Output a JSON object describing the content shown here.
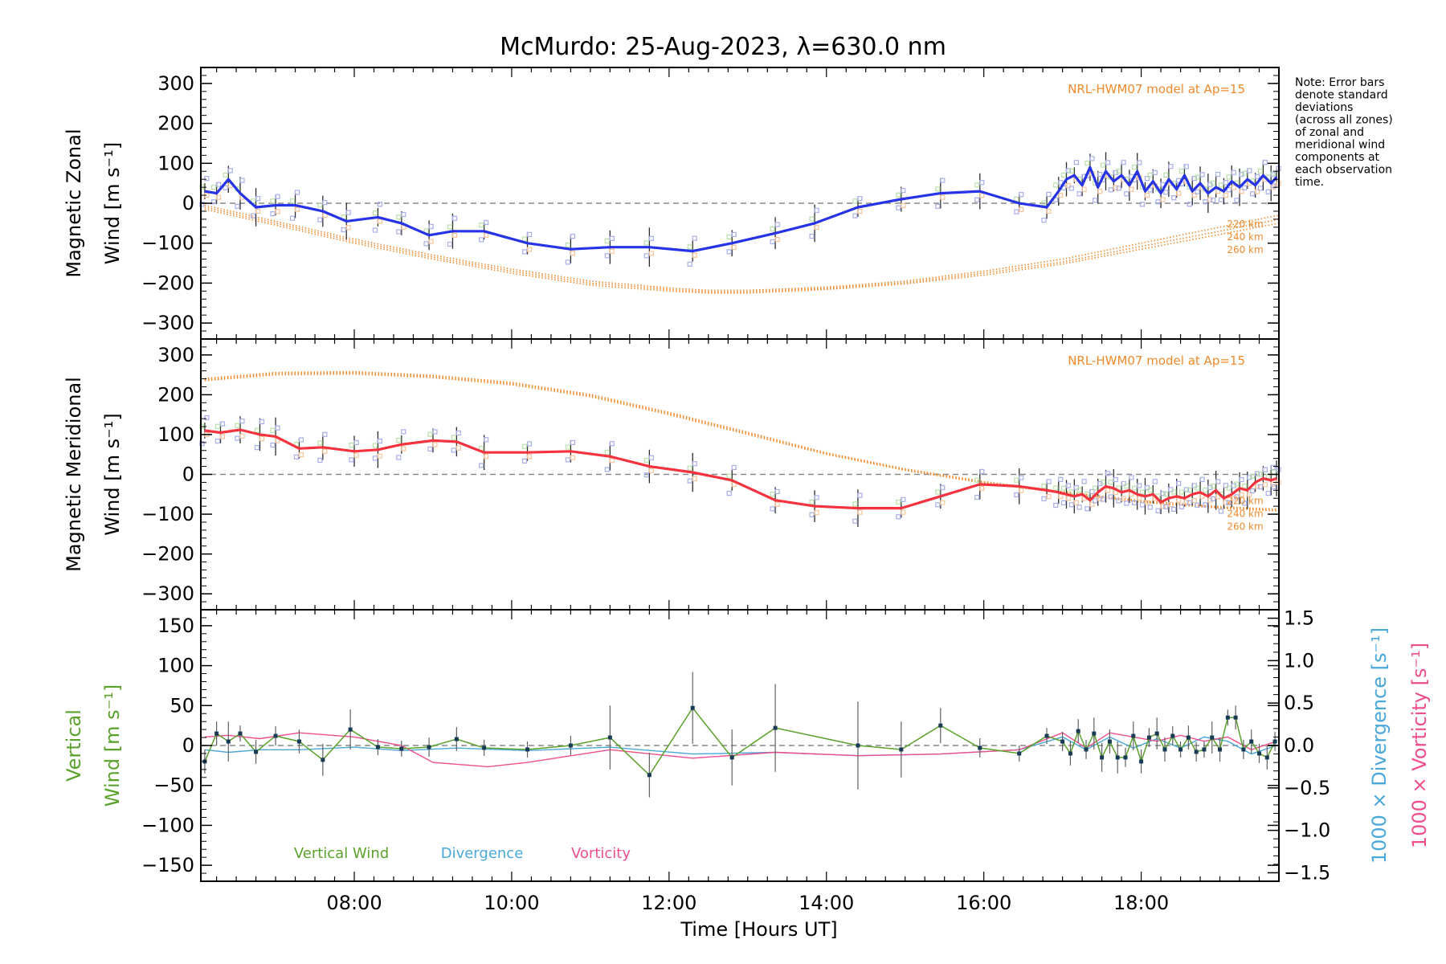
{
  "title": "McMurdo: 25-Aug-2023, λ=630.0 nm",
  "note": [
    "Note: Error bars",
    "denote standard",
    "deviations",
    "(across all zones)",
    "of zonal and",
    "meridional wind",
    "components at",
    "each observation",
    "time."
  ],
  "xlabel": "Time [Hours UT]",
  "colors": {
    "zonal": "#2633e6",
    "meridional": "#f5333f",
    "model": "#f08a2c",
    "vertical": "#5aa22c",
    "divergence": "#4aa7d9",
    "vorticity": "#ef4e8c",
    "errorbar": "#606060",
    "point": "#173a55"
  },
  "chart_data": [
    {
      "type": "line",
      "name": "zonal",
      "ylabel_line1": "Magnetic Zonal",
      "ylabel_line2": "Wind [m s⁻¹]",
      "model_label": "NRL-HWM07 model at Ap=15",
      "altitude_labels": [
        "220 km",
        "240 km",
        "260 km"
      ],
      "xlim": [
        6.05,
        19.75
      ],
      "ylim": [
        -340,
        340
      ],
      "yticks": [
        -300,
        -200,
        -100,
        0,
        100,
        200,
        300
      ],
      "ytick_labels": [
        "−300",
        "−200",
        "−100",
        "0",
        "100",
        "200",
        "300"
      ],
      "x": [
        6.1,
        6.25,
        6.4,
        6.55,
        6.75,
        7.0,
        7.25,
        7.6,
        7.9,
        8.3,
        8.6,
        8.95,
        9.25,
        9.65,
        10.2,
        10.75,
        11.25,
        11.75,
        12.3,
        12.8,
        13.35,
        13.85,
        14.4,
        14.95,
        15.45,
        15.95,
        16.45,
        16.8,
        16.95,
        17.05,
        17.15,
        17.25,
        17.35,
        17.45,
        17.55,
        17.65,
        17.75,
        17.85,
        17.95,
        18.05,
        18.15,
        18.25,
        18.35,
        18.45,
        18.55,
        18.65,
        18.75,
        18.85,
        18.95,
        19.05,
        19.15,
        19.25,
        19.35,
        19.45,
        19.55,
        19.65,
        19.72
      ],
      "values": [
        30,
        25,
        60,
        25,
        -10,
        -5,
        -5,
        -20,
        -45,
        -35,
        -50,
        -80,
        -70,
        -70,
        -100,
        -115,
        -110,
        -110,
        -120,
        -100,
        -75,
        -50,
        -10,
        10,
        25,
        30,
        0,
        -10,
        30,
        60,
        70,
        45,
        90,
        40,
        80,
        55,
        70,
        45,
        80,
        30,
        55,
        25,
        60,
        35,
        70,
        30,
        50,
        25,
        40,
        30,
        55,
        40,
        60,
        45,
        70,
        50,
        65
      ],
      "model": {
        "x": [
          6.1,
          7,
          8,
          9,
          10,
          11,
          12,
          12.5,
          13,
          14,
          15,
          16,
          17,
          18,
          19,
          19.75
        ],
        "220 km": [
          -5,
          -45,
          -90,
          -130,
          -165,
          -195,
          -212,
          -218,
          -218,
          -210,
          -195,
          -170,
          -140,
          -100,
          -60,
          -30
        ],
        "240 km": [
          -10,
          -50,
          -95,
          -135,
          -170,
          -200,
          -216,
          -222,
          -222,
          -213,
          -199,
          -175,
          -147,
          -108,
          -70,
          -40
        ],
        "260 km": [
          -15,
          -55,
          -100,
          -140,
          -175,
          -205,
          -220,
          -225,
          -225,
          -216,
          -202,
          -180,
          -152,
          -115,
          -78,
          -50
        ]
      }
    },
    {
      "type": "line",
      "name": "meridional",
      "ylabel_line1": "Magnetic Meridional",
      "ylabel_line2": "Wind [m s⁻¹]",
      "model_label": "NRL-HWM07 model at Ap=15",
      "altitude_labels": [
        "220 km",
        "240 km",
        "260 km"
      ],
      "xlim": [
        6.05,
        19.75
      ],
      "ylim": [
        -340,
        340
      ],
      "yticks": [
        -300,
        -200,
        -100,
        0,
        100,
        200,
        300
      ],
      "ytick_labels": [
        "−300",
        "−200",
        "−100",
        "0",
        "100",
        "200",
        "300"
      ],
      "x": [
        6.1,
        6.3,
        6.55,
        6.8,
        7.0,
        7.3,
        7.6,
        8.0,
        8.3,
        8.6,
        9.0,
        9.3,
        9.65,
        10.2,
        10.75,
        11.25,
        11.75,
        12.3,
        12.8,
        13.35,
        13.85,
        14.4,
        14.95,
        15.45,
        15.95,
        16.45,
        16.8,
        16.95,
        17.05,
        17.15,
        17.25,
        17.35,
        17.45,
        17.55,
        17.65,
        17.75,
        17.85,
        17.95,
        18.05,
        18.15,
        18.25,
        18.35,
        18.45,
        18.55,
        18.65,
        18.75,
        18.85,
        18.95,
        19.05,
        19.15,
        19.25,
        19.35,
        19.45,
        19.55,
        19.65,
        19.72
      ],
      "values": [
        110,
        105,
        112,
        100,
        95,
        65,
        68,
        58,
        62,
        75,
        85,
        82,
        55,
        55,
        58,
        45,
        20,
        5,
        -15,
        -65,
        -80,
        -85,
        -85,
        -55,
        -25,
        -30,
        -40,
        -45,
        -50,
        -55,
        -50,
        -65,
        -45,
        -30,
        -35,
        -45,
        -40,
        -50,
        -55,
        -50,
        -70,
        -60,
        -55,
        -60,
        -50,
        -45,
        -55,
        -40,
        -60,
        -50,
        -35,
        -40,
        -20,
        -10,
        -15,
        -10
      ],
      "model": {
        "x": [
          6.1,
          7,
          8,
          9,
          10,
          11,
          12,
          13,
          14,
          15,
          16,
          17,
          18,
          19,
          19.75
        ],
        "220 km": [
          235,
          250,
          252,
          243,
          225,
          195,
          150,
          100,
          50,
          10,
          -22,
          -47,
          -70,
          -85,
          -92
        ],
        "240 km": [
          238,
          253,
          255,
          246,
          228,
          198,
          153,
          103,
          52,
          12,
          -20,
          -45,
          -68,
          -83,
          -90
        ],
        "260 km": [
          241,
          256,
          258,
          249,
          231,
          201,
          156,
          106,
          54,
          14,
          -18,
          -43,
          -66,
          -81,
          -88
        ]
      }
    },
    {
      "type": "line",
      "name": "vertical",
      "ylabel_line1": "Vertical",
      "ylabel_line2": "Wind [m s⁻¹]",
      "right_label_divergence": "1000 × Divergence [s⁻¹]",
      "right_label_vorticity": "1000 × Vorticity [s⁻¹]",
      "legend": [
        "Vertical Wind",
        "Divergence",
        "Vorticity"
      ],
      "xlim": [
        6.05,
        19.75
      ],
      "ylim": [
        -170,
        170
      ],
      "yticks": [
        -150,
        -100,
        -50,
        0,
        50,
        100,
        150
      ],
      "ytick_labels": [
        "−150",
        "−100",
        "−50",
        "0",
        "50",
        "100",
        "150"
      ],
      "y2lim": [
        -1.6,
        1.6
      ],
      "y2ticks": [
        -1.5,
        -1.0,
        -0.5,
        0.0,
        0.5,
        1.0,
        1.5
      ],
      "y2tick_labels": [
        "−1.5",
        "−1.0",
        "−0.5",
        "0.0",
        "0.5",
        "1.0",
        "1.5"
      ],
      "xticks": [
        8,
        10,
        12,
        14,
        16,
        18
      ],
      "xtick_labels": [
        "08:00",
        "10:00",
        "12:00",
        "14:00",
        "16:00",
        "18:00"
      ],
      "x": [
        6.1,
        6.25,
        6.4,
        6.55,
        6.75,
        7.0,
        7.3,
        7.6,
        7.95,
        8.3,
        8.6,
        8.95,
        9.3,
        9.65,
        10.2,
        10.75,
        11.25,
        11.75,
        12.3,
        12.8,
        13.35,
        14.4,
        14.95,
        15.45,
        15.95,
        16.45,
        16.8,
        17.0,
        17.1,
        17.2,
        17.3,
        17.4,
        17.5,
        17.6,
        17.7,
        17.8,
        17.9,
        18.0,
        18.1,
        18.2,
        18.3,
        18.4,
        18.5,
        18.6,
        18.7,
        18.8,
        18.9,
        19.0,
        19.1,
        19.2,
        19.3,
        19.4,
        19.5,
        19.6,
        19.7
      ],
      "values": [
        -20,
        15,
        5,
        15,
        -8,
        12,
        5,
        -18,
        20,
        -2,
        -4,
        -2,
        8,
        -3,
        -5,
        0,
        10,
        -37,
        47,
        -15,
        22,
        0,
        -5,
        25,
        -3,
        -10,
        12,
        5,
        -10,
        18,
        -5,
        15,
        -15,
        5,
        -15,
        -15,
        12,
        -20,
        10,
        15,
        -5,
        12,
        -5,
        10,
        -8,
        -5,
        10,
        -5,
        35,
        35,
        -5,
        5,
        -10,
        -15,
        5
      ],
      "errors": [
        15,
        15,
        25,
        10,
        15,
        12,
        15,
        20,
        25,
        10,
        10,
        12,
        15,
        10,
        10,
        12,
        40,
        28,
        45,
        35,
        55,
        55,
        35,
        22,
        12,
        10,
        10,
        12,
        15,
        15,
        12,
        20,
        18,
        15,
        20,
        12,
        18,
        15,
        12,
        20,
        15,
        12,
        10,
        15,
        12,
        10,
        20,
        15,
        10,
        15,
        12,
        15,
        12,
        15,
        12
      ],
      "divergence": {
        "x": [
          6.1,
          6.4,
          6.8,
          7.3,
          8.0,
          8.6,
          9.3,
          10.2,
          11.25,
          12.3,
          13.35,
          14.4,
          15.45,
          16.45,
          17.0,
          17.3,
          17.6,
          17.9,
          18.2,
          18.5,
          18.8,
          19.1,
          19.4,
          19.72
        ],
        "values": [
          -0.05,
          -0.08,
          -0.05,
          -0.05,
          -0.02,
          -0.06,
          -0.03,
          -0.06,
          -0.02,
          -0.1,
          -0.08,
          -0.12,
          -0.1,
          -0.05,
          0.1,
          -0.05,
          0.1,
          -0.03,
          0.08,
          -0.03,
          0.1,
          0.05,
          -0.1,
          0.0
        ]
      },
      "vorticity": {
        "x": [
          6.1,
          6.4,
          6.8,
          7.3,
          8.0,
          8.6,
          9.0,
          9.7,
          10.2,
          11.25,
          12.3,
          13.35,
          14.4,
          15.45,
          16.45,
          17.0,
          17.3,
          17.6,
          17.9,
          18.2,
          18.5,
          18.8,
          19.1,
          19.4,
          19.72
        ],
        "values": [
          0.1,
          0.12,
          0.08,
          0.15,
          0.1,
          0.0,
          -0.2,
          -0.25,
          -0.2,
          -0.05,
          -0.15,
          -0.08,
          -0.12,
          -0.1,
          -0.05,
          0.15,
          -0.03,
          0.15,
          0.1,
          0.05,
          0.12,
          0.05,
          0.1,
          -0.05,
          0.05
        ]
      }
    }
  ]
}
